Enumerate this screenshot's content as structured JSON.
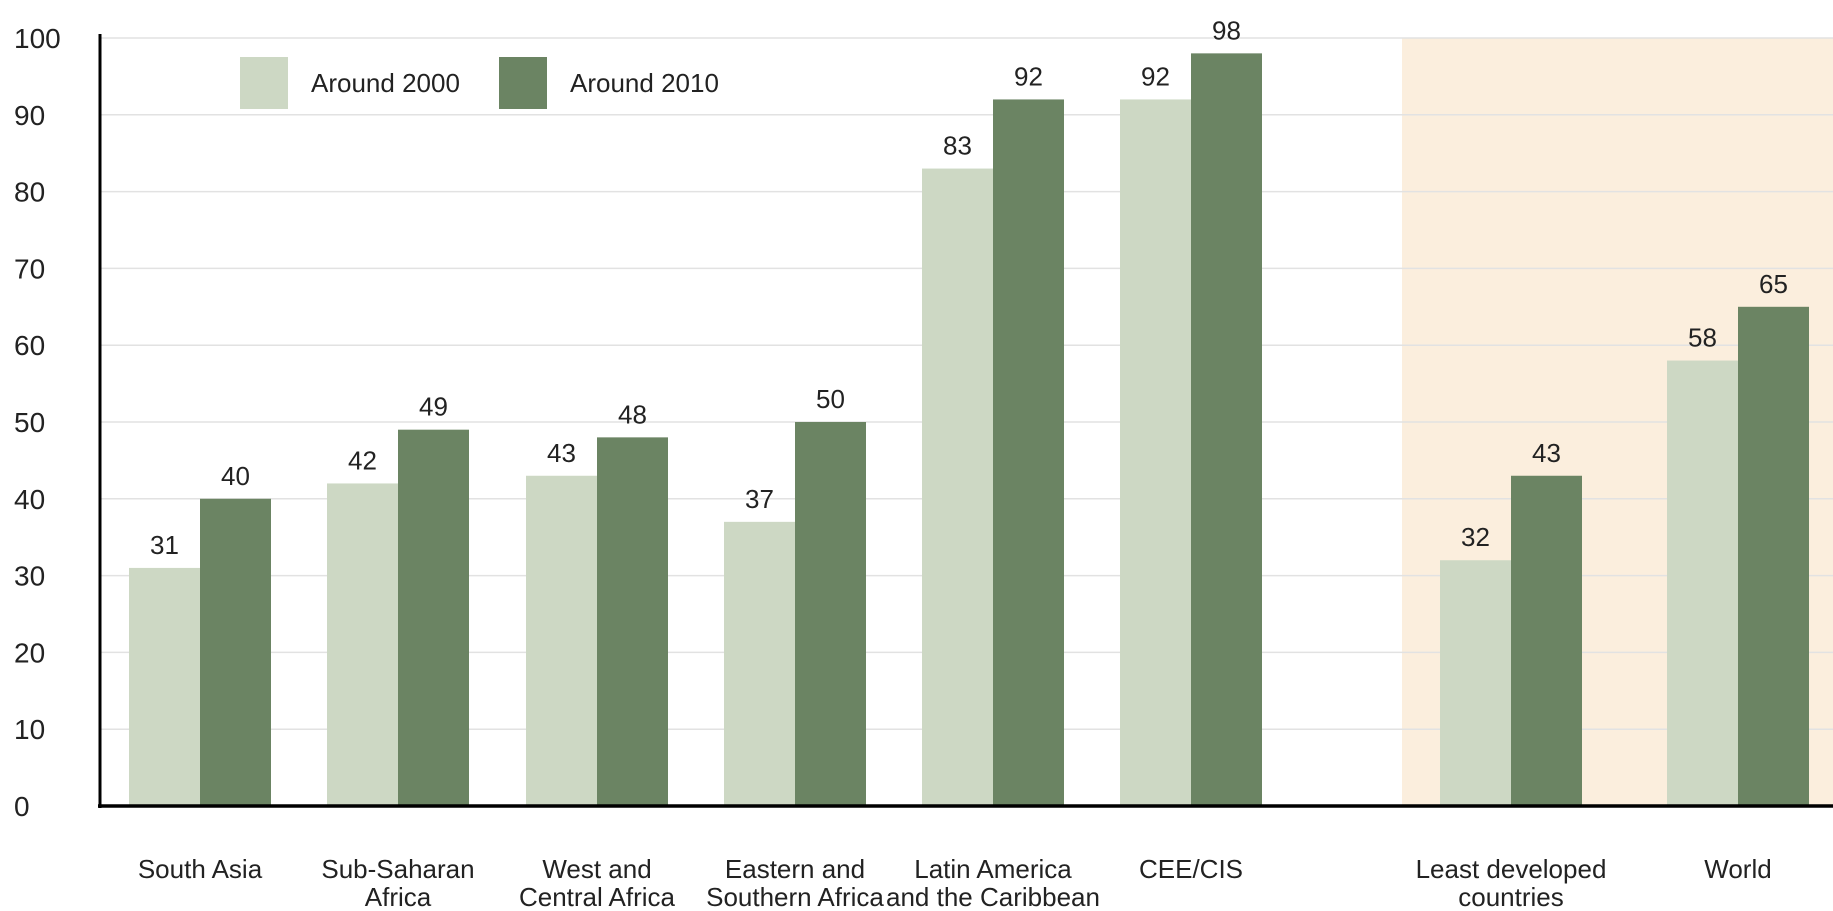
{
  "chart_data": {
    "type": "bar",
    "categories": [
      [
        "South Asia"
      ],
      [
        "Sub-Saharan",
        "Africa"
      ],
      [
        "West and",
        "Central Africa"
      ],
      [
        "Eastern and",
        "Southern Africa"
      ],
      [
        "Latin America",
        "and the Caribbean"
      ],
      [
        "CEE/CIS"
      ],
      [
        "Least developed",
        "countries"
      ],
      [
        "World"
      ]
    ],
    "series": [
      {
        "name": "Around 2000",
        "color": "#cdd8c4",
        "values": [
          31,
          42,
          43,
          37,
          83,
          92,
          32,
          58
        ]
      },
      {
        "name": "Around 2010",
        "color": "#6b8463",
        "values": [
          40,
          49,
          48,
          50,
          92,
          98,
          43,
          65
        ]
      }
    ],
    "ylim": [
      0,
      100
    ],
    "yticks": [
      0,
      10,
      20,
      30,
      40,
      50,
      60,
      70,
      80,
      90,
      100
    ],
    "grid": true,
    "legend": "top-left",
    "highlight_color": "#fbeedd",
    "highlighted_categories": [
      "Least developed countries",
      "World"
    ]
  }
}
